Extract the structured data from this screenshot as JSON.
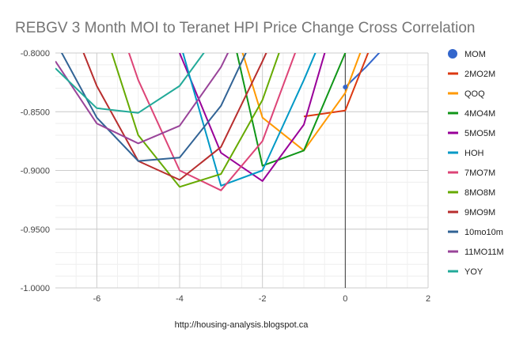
{
  "chart_data": {
    "type": "line",
    "title": "REBGV 3 Month MOI to Teranet HPI Price Change Cross Correlation",
    "footer": "http://housing-analysis.blogspot.ca",
    "xlabel": "",
    "ylabel": "",
    "xlim": [
      -7,
      2
    ],
    "ylim": [
      -1.0,
      -0.8
    ],
    "x_ticks": [
      -6,
      -4,
      -2,
      0,
      2
    ],
    "x_tick_labels": [
      "-6",
      "-4",
      "-2",
      "0",
      "2"
    ],
    "y_ticks": [
      -1.0,
      -0.95,
      -0.9,
      -0.85,
      -0.8
    ],
    "y_tick_labels": [
      "-1.0000",
      "-0.9500",
      "-0.9000",
      "-0.8500",
      "-0.8000"
    ],
    "legend_position": "right",
    "series": [
      {
        "name": "MOM",
        "color": "#3366cc",
        "marker": "circle",
        "points": [
          [
            0,
            -0.829
          ],
          [
            0.5,
            -0.812
          ],
          [
            1,
            -0.793
          ]
        ]
      },
      {
        "name": "2MO2M",
        "color": "#dc3912",
        "points": [
          [
            -1,
            -0.854
          ],
          [
            0,
            -0.849
          ],
          [
            1,
            -0.76
          ]
        ]
      },
      {
        "name": "QOQ",
        "color": "#ff9900",
        "points": [
          [
            -3,
            -0.74
          ],
          [
            -2,
            -0.855
          ],
          [
            -1,
            -0.883
          ],
          [
            0,
            -0.834
          ],
          [
            1,
            -0.74
          ]
        ]
      },
      {
        "name": "4MO4M",
        "color": "#109618",
        "points": [
          [
            -3,
            -0.74
          ],
          [
            -2,
            -0.896
          ],
          [
            -1,
            -0.883
          ],
          [
            0,
            -0.8
          ],
          [
            1,
            -0.72
          ]
        ]
      },
      {
        "name": "5MO5M",
        "color": "#990099",
        "points": [
          [
            -4,
            -0.8
          ],
          [
            -3,
            -0.885
          ],
          [
            -2,
            -0.909
          ],
          [
            -1,
            -0.861
          ],
          [
            0,
            -0.74
          ]
        ]
      },
      {
        "name": "HOH",
        "color": "#0099c6",
        "points": [
          [
            -5,
            -0.73
          ],
          [
            -4,
            -0.79
          ],
          [
            -3,
            -0.913
          ],
          [
            -2,
            -0.9
          ],
          [
            -1,
            -0.823
          ],
          [
            0,
            -0.74
          ]
        ]
      },
      {
        "name": "7MO7M",
        "color": "#dd4477",
        "points": [
          [
            -6,
            -0.72
          ],
          [
            -5,
            -0.823
          ],
          [
            -4,
            -0.9
          ],
          [
            -3,
            -0.917
          ],
          [
            -2,
            -0.875
          ],
          [
            -1,
            -0.78
          ]
        ]
      },
      {
        "name": "8MO8M",
        "color": "#66aa00",
        "points": [
          [
            -6,
            -0.76
          ],
          [
            -5,
            -0.87
          ],
          [
            -4,
            -0.914
          ],
          [
            -3,
            -0.903
          ],
          [
            -2,
            -0.84
          ],
          [
            -1,
            -0.74
          ]
        ]
      },
      {
        "name": "9MO9M",
        "color": "#b82e2e",
        "points": [
          [
            -7,
            -0.74
          ],
          [
            -6,
            -0.828
          ],
          [
            -5,
            -0.892
          ],
          [
            -4,
            -0.908
          ],
          [
            -3,
            -0.88
          ],
          [
            -2,
            -0.807
          ],
          [
            -1,
            -0.73
          ]
        ]
      },
      {
        "name": "10mo10m",
        "color": "#316395",
        "points": [
          [
            -7,
            -0.79
          ],
          [
            -6,
            -0.855
          ],
          [
            -5,
            -0.892
          ],
          [
            -4,
            -0.889
          ],
          [
            -3,
            -0.845
          ],
          [
            -2,
            -0.77
          ]
        ]
      },
      {
        "name": "11MO11M",
        "color": "#994499",
        "points": [
          [
            -7,
            -0.807
          ],
          [
            -6,
            -0.86
          ],
          [
            -5,
            -0.877
          ],
          [
            -4,
            -0.862
          ],
          [
            -3,
            -0.812
          ],
          [
            -2,
            -0.74
          ]
        ]
      },
      {
        "name": "YOY",
        "color": "#22aa99",
        "points": [
          [
            -7,
            -0.813
          ],
          [
            -6,
            -0.847
          ],
          [
            -5,
            -0.851
          ],
          [
            -4,
            -0.828
          ],
          [
            -3,
            -0.78
          ]
        ]
      }
    ]
  }
}
